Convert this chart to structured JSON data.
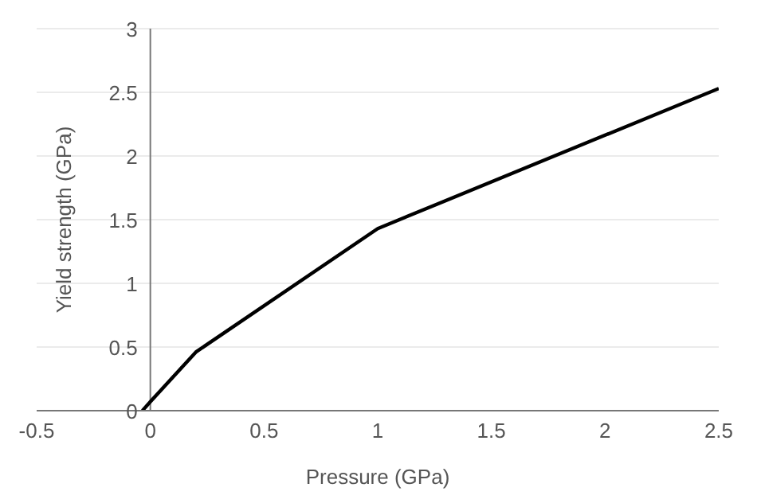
{
  "chart_data": {
    "type": "line",
    "xlabel": "Pressure (GPa)",
    "ylabel": "Yield strength (GPa)",
    "x": [
      -0.035,
      0,
      0.2,
      1,
      2.5
    ],
    "series": [
      {
        "color": "#000000",
        "values": [
          0,
          0.07,
          0.46,
          1.43,
          2.53
        ]
      }
    ],
    "xlim": [
      -0.5,
      2.5
    ],
    "xticks": [
      -0.5,
      0,
      0.5,
      1,
      1.5,
      2,
      2.5
    ],
    "ylim": [
      0,
      3
    ],
    "yticks": [
      0,
      0.5,
      1,
      1.5,
      2,
      2.5,
      3
    ],
    "grid": "y",
    "marker": "none",
    "line_style": "solid"
  }
}
